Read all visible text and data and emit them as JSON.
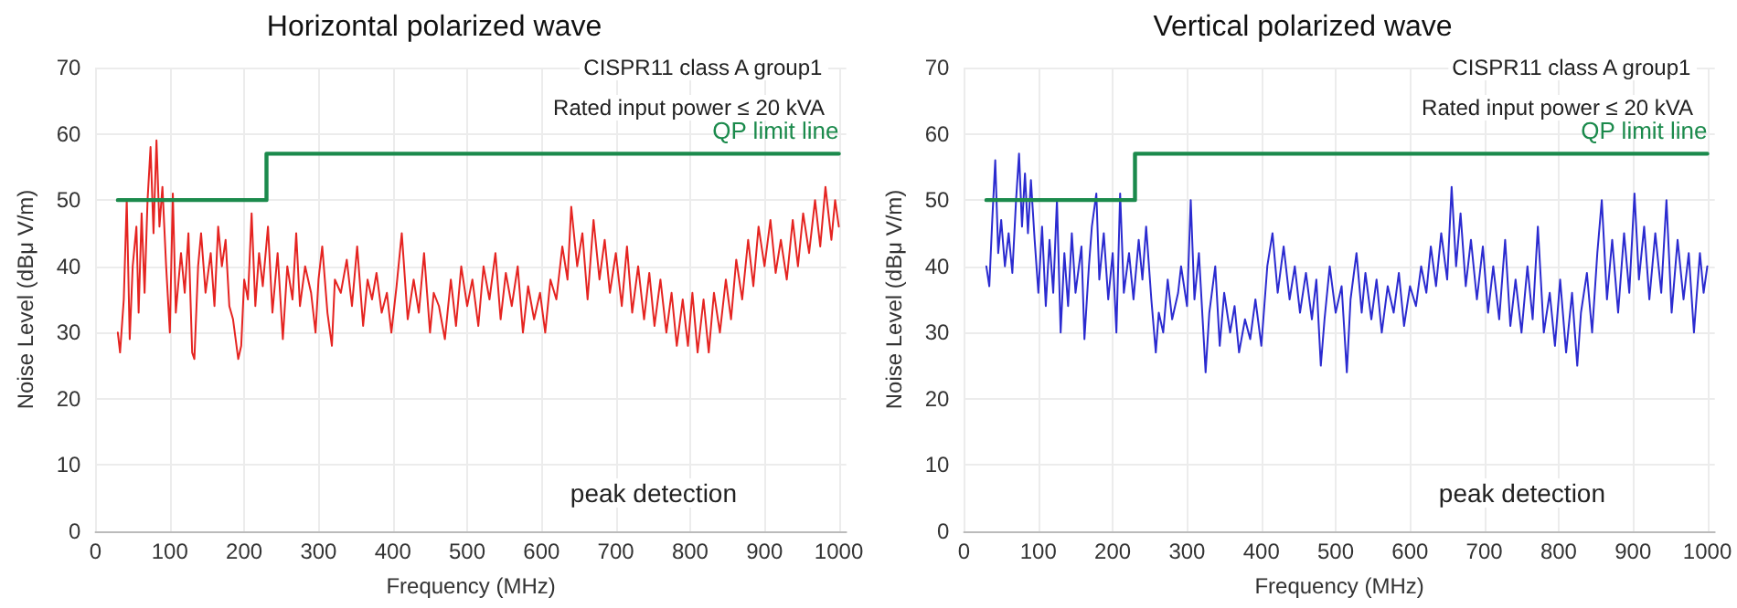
{
  "chart_data": [
    {
      "type": "line",
      "title": "Horizontal polarized wave",
      "xlabel": "Frequency (MHz)",
      "ylabel": "Noise Level (dBμ V/m)",
      "xlim": [
        0,
        1010
      ],
      "xticks": [
        0,
        100,
        200,
        300,
        400,
        500,
        600,
        700,
        800,
        900,
        1000
      ],
      "ylim": [
        0,
        70
      ],
      "yticks": [
        0,
        10,
        20,
        30,
        40,
        50,
        60,
        70
      ],
      "grid": true,
      "marker": "none",
      "line_style": "solid",
      "annotations": [
        "CISPR11 class A group1",
        "Rated input power ≤ 20 kVA",
        "peak detection"
      ],
      "series": [
        {
          "color": "#e52421",
          "x": [
            30,
            33,
            38,
            42,
            46,
            50,
            55,
            58,
            62,
            66,
            70,
            74,
            78,
            82,
            86,
            90,
            95,
            100,
            104,
            108,
            115,
            120,
            125,
            130,
            133,
            138,
            142,
            148,
            155,
            160,
            165,
            170,
            175,
            180,
            185,
            192,
            196,
            200,
            205,
            210,
            215,
            220,
            225,
            232,
            238,
            245,
            252,
            258,
            265,
            270,
            275,
            282,
            290,
            296,
            300,
            305,
            312,
            318,
            322,
            330,
            338,
            345,
            352,
            360,
            366,
            372,
            378,
            385,
            392,
            398,
            405,
            412,
            420,
            428,
            435,
            442,
            450,
            455,
            462,
            470,
            478,
            485,
            492,
            500,
            507,
            515,
            522,
            530,
            538,
            545,
            552,
            560,
            568,
            575,
            582,
            590,
            598,
            605,
            612,
            620,
            628,
            635,
            640,
            648,
            655,
            662,
            670,
            678,
            685,
            692,
            700,
            708,
            715,
            722,
            730,
            738,
            745,
            752,
            760,
            768,
            775,
            782,
            790,
            797,
            803,
            810,
            818,
            825,
            832,
            840,
            848,
            855,
            862,
            870,
            878,
            885,
            892,
            900,
            908,
            915,
            922,
            930,
            938,
            945,
            952,
            960,
            968,
            975,
            982,
            990,
            995,
            1000
          ],
          "values": [
            30,
            27,
            35,
            50,
            29,
            40,
            46,
            33,
            48,
            36,
            50,
            58,
            45,
            59,
            46,
            52,
            40,
            30,
            51,
            33,
            42,
            36,
            45,
            27,
            26,
            40,
            45,
            36,
            42,
            34,
            46,
            40,
            44,
            34,
            32,
            26,
            28,
            38,
            35,
            48,
            34,
            42,
            37,
            46,
            33,
            42,
            29,
            40,
            35,
            45,
            34,
            40,
            36,
            30,
            38,
            43,
            33,
            28,
            38,
            36,
            41,
            34,
            43,
            31,
            38,
            35,
            39,
            33,
            36,
            30,
            37,
            45,
            32,
            38,
            33,
            42,
            30,
            36,
            34,
            29,
            38,
            31,
            40,
            34,
            38,
            31,
            40,
            35,
            42,
            32,
            39,
            34,
            40,
            30,
            37,
            32,
            36,
            30,
            38,
            35,
            43,
            38,
            49,
            40,
            45,
            35,
            47,
            38,
            44,
            36,
            42,
            34,
            43,
            33,
            40,
            32,
            39,
            31,
            38,
            30,
            36,
            28,
            35,
            28,
            36,
            27,
            35,
            27,
            36,
            30,
            38,
            32,
            41,
            35,
            44,
            37,
            46,
            40,
            47,
            39,
            44,
            38,
            47,
            40,
            48,
            42,
            50,
            43,
            52,
            44,
            50,
            46
          ]
        },
        {
          "name": "QP limit line",
          "color": "#1b8a4c",
          "x": [
            30,
            230,
            230,
            1000
          ],
          "values": [
            50,
            50,
            57,
            57
          ]
        }
      ]
    },
    {
      "type": "line",
      "title": "Vertical polarized wave",
      "xlabel": "Frequency (MHz)",
      "ylabel": "Noise Level (dBμ V/m)",
      "xlim": [
        0,
        1010
      ],
      "xticks": [
        0,
        100,
        200,
        300,
        400,
        500,
        600,
        700,
        800,
        900,
        1000
      ],
      "ylim": [
        0,
        70
      ],
      "yticks": [
        0,
        10,
        20,
        30,
        40,
        50,
        60,
        70
      ],
      "grid": true,
      "marker": "none",
      "line_style": "solid",
      "annotations": [
        "CISPR11 class A group1",
        "Rated input power ≤ 20 kVA",
        "peak detection"
      ],
      "series": [
        {
          "color": "#2b2bd0",
          "x": [
            30,
            34,
            38,
            42,
            46,
            50,
            55,
            60,
            65,
            70,
            74,
            78,
            82,
            86,
            90,
            95,
            100,
            105,
            110,
            115,
            120,
            125,
            130,
            135,
            140,
            145,
            150,
            158,
            162,
            168,
            172,
            178,
            182,
            188,
            194,
            200,
            205,
            210,
            215,
            222,
            228,
            235,
            240,
            245,
            252,
            258,
            262,
            268,
            274,
            280,
            288,
            292,
            300,
            305,
            310,
            316,
            322,
            325,
            330,
            338,
            344,
            350,
            358,
            364,
            370,
            378,
            385,
            392,
            400,
            408,
            415,
            422,
            430,
            438,
            445,
            452,
            460,
            468,
            474,
            480,
            485,
            492,
            500,
            508,
            515,
            520,
            528,
            535,
            540,
            548,
            555,
            562,
            570,
            578,
            585,
            592,
            600,
            608,
            615,
            622,
            628,
            635,
            642,
            650,
            656,
            662,
            668,
            675,
            682,
            690,
            698,
            705,
            712,
            720,
            728,
            735,
            742,
            750,
            758,
            765,
            772,
            780,
            788,
            795,
            802,
            810,
            818,
            825,
            830,
            838,
            845,
            852,
            858,
            865,
            872,
            880,
            888,
            895,
            902,
            908,
            915,
            922,
            930,
            938,
            945,
            952,
            960,
            968,
            975,
            982,
            990,
            995,
            1000
          ],
          "values": [
            40,
            37,
            47,
            56,
            42,
            47,
            40,
            45,
            39,
            50,
            57,
            46,
            54,
            45,
            53,
            44,
            36,
            46,
            34,
            44,
            36,
            50,
            30,
            42,
            34,
            45,
            36,
            43,
            29,
            40,
            46,
            51,
            38,
            45,
            35,
            42,
            30,
            51,
            36,
            42,
            35,
            44,
            38,
            46,
            35,
            27,
            33,
            30,
            38,
            32,
            36,
            40,
            34,
            50,
            35,
            42,
            30,
            24,
            33,
            40,
            28,
            36,
            30,
            34,
            27,
            32,
            29,
            35,
            28,
            40,
            45,
            36,
            43,
            35,
            40,
            33,
            39,
            32,
            38,
            25,
            32,
            40,
            33,
            37,
            24,
            35,
            42,
            33,
            39,
            32,
            38,
            30,
            37,
            33,
            39,
            31,
            37,
            34,
            40,
            36,
            43,
            37,
            45,
            38,
            52,
            40,
            48,
            37,
            44,
            35,
            43,
            33,
            40,
            32,
            44,
            31,
            38,
            30,
            40,
            32,
            46,
            30,
            36,
            28,
            38,
            27,
            36,
            25,
            33,
            39,
            30,
            42,
            50,
            35,
            44,
            33,
            45,
            36,
            51,
            38,
            46,
            35,
            45,
            36,
            50,
            33,
            44,
            35,
            42,
            30,
            42,
            36,
            40
          ]
        },
        {
          "name": "QP limit line",
          "color": "#1b8a4c",
          "x": [
            30,
            230,
            230,
            1000
          ],
          "values": [
            50,
            50,
            57,
            57
          ]
        }
      ]
    }
  ]
}
